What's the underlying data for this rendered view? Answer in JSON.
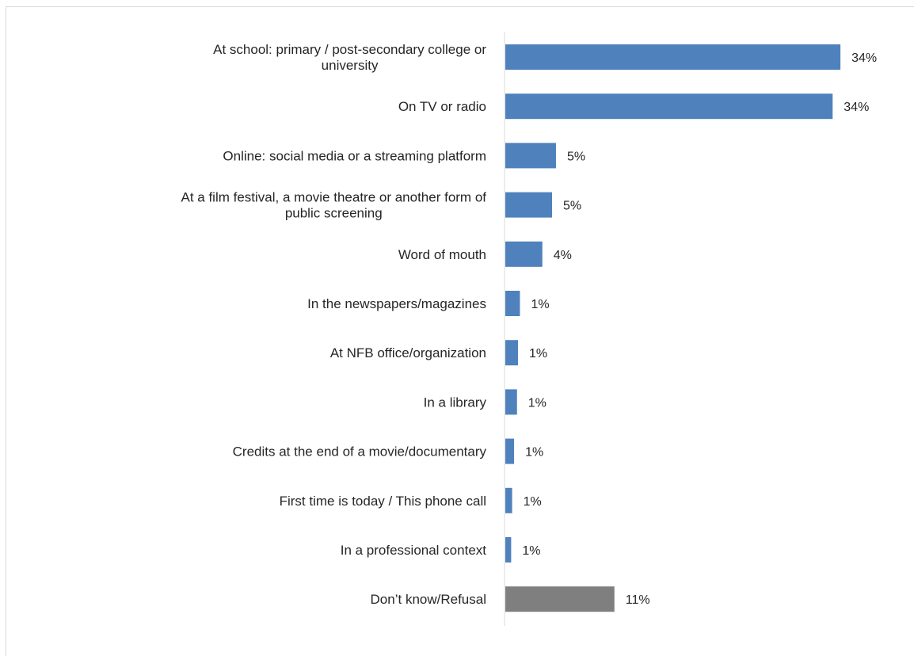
{
  "chart_data": {
    "type": "bar",
    "orientation": "horizontal",
    "categories": [
      [
        "At school: primary / post-secondary college or",
        "university"
      ],
      [
        "On TV or radio"
      ],
      [
        "Online: social media or a streaming platform"
      ],
      [
        "At a film festival, a movie theatre or another form of",
        "public screening"
      ],
      [
        "Word of mouth"
      ],
      [
        "In the newspapers/magazines"
      ],
      [
        "At NFB office/organization"
      ],
      [
        "In a library"
      ],
      [
        "Credits at the end of a movie/documentary"
      ],
      [
        "First time is today / This phone call"
      ],
      [
        "In a professional context"
      ],
      [
        "Don’t know/Refusal"
      ]
    ],
    "values": [
      34.4,
      33.6,
      5.2,
      4.8,
      3.8,
      1.5,
      1.3,
      1.2,
      0.9,
      0.7,
      0.6,
      11.2
    ],
    "value_labels": [
      "34%",
      "34%",
      "5%",
      "5%",
      "4%",
      "1%",
      "1%",
      "1%",
      "1%",
      "1%",
      "1%",
      "11%"
    ],
    "bar_colors": [
      "#4f81bd",
      "#4f81bd",
      "#4f81bd",
      "#4f81bd",
      "#4f81bd",
      "#4f81bd",
      "#4f81bd",
      "#4f81bd",
      "#4f81bd",
      "#4f81bd",
      "#4f81bd",
      "#7f7f7f"
    ],
    "xlim": [
      0,
      40
    ],
    "axis_color": "#d9d9d9",
    "label_color": "#262626",
    "grid": false,
    "legend": false
  }
}
